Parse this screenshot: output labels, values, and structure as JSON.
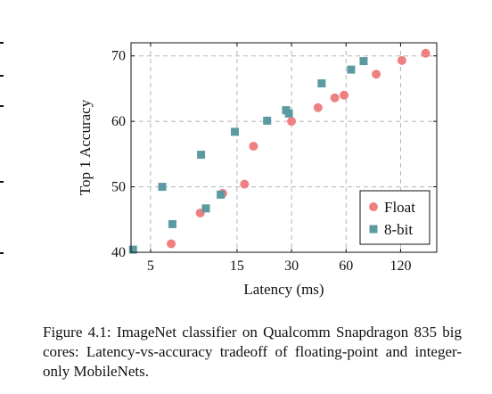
{
  "chart_data": {
    "type": "scatter",
    "xlabel": "Latency (ms)",
    "ylabel": "Top 1 Accuracy",
    "x_scale": "log",
    "xlim": [
      3.9,
      190
    ],
    "ylim": [
      40,
      72
    ],
    "x_ticks": [
      5,
      15,
      30,
      60,
      120
    ],
    "y_ticks": [
      40,
      50,
      60,
      70
    ],
    "grid": true,
    "legend_position": "bottom-right",
    "series": [
      {
        "name": "Float",
        "marker": "circle",
        "color": "#f08080",
        "points": [
          [
            6.5,
            41.3
          ],
          [
            9.4,
            46.0
          ],
          [
            12.5,
            49.0
          ],
          [
            16.5,
            50.4
          ],
          [
            18.5,
            56.2
          ],
          [
            30.0,
            60.0
          ],
          [
            42.0,
            62.1
          ],
          [
            52.0,
            63.6
          ],
          [
            58.5,
            64.0
          ],
          [
            88.0,
            67.2
          ],
          [
            122.0,
            69.3
          ],
          [
            165.0,
            70.4
          ]
        ]
      },
      {
        "name": "8-bit",
        "marker": "square",
        "color": "#5b9aa0",
        "points": [
          [
            4.0,
            40.4
          ],
          [
            5.8,
            50.0
          ],
          [
            6.6,
            44.3
          ],
          [
            9.5,
            54.9
          ],
          [
            10.1,
            46.7
          ],
          [
            12.2,
            48.8
          ],
          [
            14.6,
            58.4
          ],
          [
            22.0,
            60.1
          ],
          [
            28.0,
            61.7
          ],
          [
            29.0,
            61.2
          ],
          [
            44.0,
            65.8
          ],
          [
            64.0,
            67.9
          ],
          [
            75.0,
            69.2
          ]
        ]
      }
    ]
  },
  "caption": "Figure 4.1: ImageNet classifier on Qualcomm Snapdragon 835 big cores: Latency-vs-accuracy tradeoff of floating-point and integer-only MobileNets."
}
